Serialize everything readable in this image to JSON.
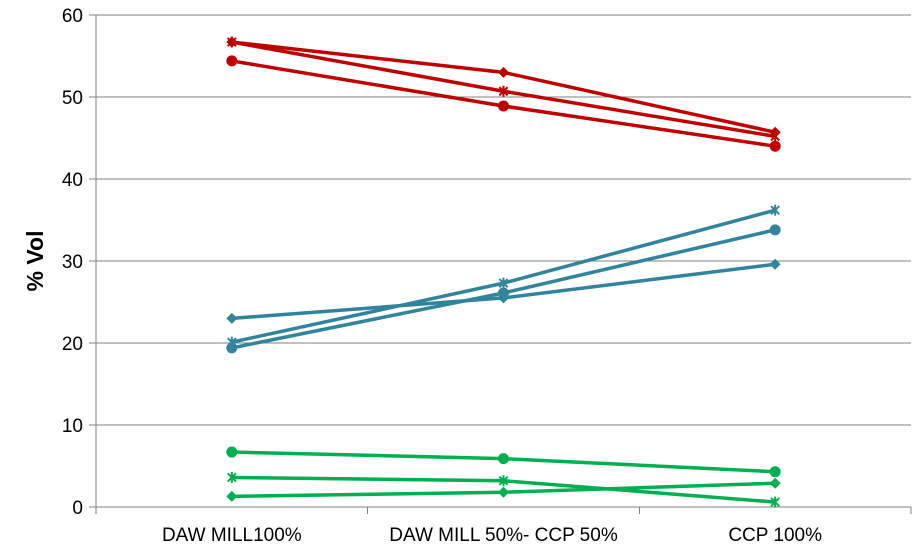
{
  "chart_data": {
    "type": "line",
    "title": "",
    "xlabel": "",
    "ylabel": "% Vol",
    "categories": [
      "DAW MILL100%",
      "DAW MILL 50%- CCP 50%",
      "CCP 100%"
    ],
    "ylim": [
      0,
      60
    ],
    "yticks": [
      0,
      10,
      20,
      30,
      40,
      50,
      60
    ],
    "grid": "horizontal",
    "legend": "none",
    "series": [
      {
        "values": [
          56.7,
          53.0,
          45.7
        ],
        "color": "#C00000",
        "marker": "diamond"
      },
      {
        "values": [
          56.7,
          50.7,
          45.2
        ],
        "color": "#C00000",
        "marker": "asterisk"
      },
      {
        "values": [
          54.4,
          48.9,
          44.0
        ],
        "color": "#C00000",
        "marker": "circle"
      },
      {
        "values": [
          23.0,
          25.5,
          29.6
        ],
        "color": "#31849B",
        "marker": "diamond"
      },
      {
        "values": [
          20.1,
          27.3,
          36.2
        ],
        "color": "#31849B",
        "marker": "asterisk"
      },
      {
        "values": [
          19.4,
          26.1,
          33.8
        ],
        "color": "#31849B",
        "marker": "circle"
      },
      {
        "values": [
          1.3,
          1.8,
          2.9
        ],
        "color": "#00B050",
        "marker": "diamond"
      },
      {
        "values": [
          3.6,
          3.2,
          0.6
        ],
        "color": "#00B050",
        "marker": "asterisk"
      },
      {
        "values": [
          6.7,
          5.9,
          4.3
        ],
        "color": "#00B050",
        "marker": "circle"
      }
    ]
  }
}
